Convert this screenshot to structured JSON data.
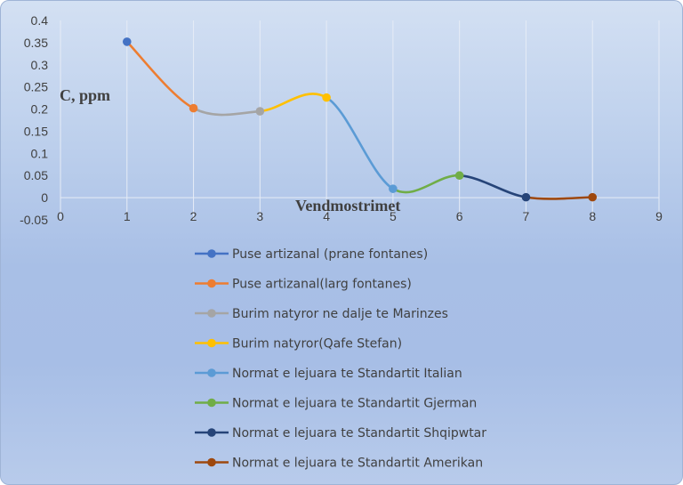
{
  "chart_data": {
    "type": "line",
    "title": "",
    "xlabel": "Vendmostrimet",
    "ylabel": "C, ppm",
    "xlim": [
      0,
      9
    ],
    "ylim": [
      -0.05,
      0.4
    ],
    "xticks": [
      0,
      1,
      2,
      3,
      4,
      5,
      6,
      7,
      8,
      9
    ],
    "yticks": [
      -0.05,
      0,
      0.05,
      0.1,
      0.15,
      0.2,
      0.25,
      0.3,
      0.35,
      0.4
    ],
    "ytick_labels": [
      "-0.05",
      "0",
      "0.05",
      "0.1",
      "0.15",
      "0.2",
      "0.25",
      "0.3",
      "0.35",
      "0.4"
    ],
    "grid": "vertical",
    "smooth": true,
    "legend_position": "bottom",
    "series": [
      {
        "name": "Puse artizanal (prane fontanes)",
        "color": "#4472c4",
        "x": [
          1
        ],
        "y": [
          0.352
        ]
      },
      {
        "name": "Puse artizanal(larg fontanes)",
        "color": "#ed7d31",
        "x": [
          1,
          2
        ],
        "y": [
          0.352,
          0.202
        ]
      },
      {
        "name": "Burim natyror ne dalje te Marinzes",
        "color": "#a5a5a5",
        "x": [
          2,
          3
        ],
        "y": [
          0.202,
          0.195
        ]
      },
      {
        "name": "Burim natyror(Qafe Stefan)",
        "color": "#ffc000",
        "x": [
          3,
          4
        ],
        "y": [
          0.195,
          0.226
        ]
      },
      {
        "name": "Normat e lejuara te Standartit Italian",
        "color": "#5b9bd5",
        "x": [
          4,
          5
        ],
        "y": [
          0.226,
          0.02
        ]
      },
      {
        "name": "Normat e lejuara te Standartit Gjerman",
        "color": "#70ad47",
        "x": [
          5,
          6
        ],
        "y": [
          0.02,
          0.05
        ]
      },
      {
        "name": "Normat e lejuara te Standartit Shqipwtar",
        "color": "#264478",
        "x": [
          6,
          7
        ],
        "y": [
          0.05,
          0.001
        ]
      },
      {
        "name": "Normat e lejuara te Standartit Amerikan",
        "color": "#9e480e",
        "x": [
          7,
          8
        ],
        "y": [
          0.001,
          0.001
        ]
      }
    ]
  }
}
